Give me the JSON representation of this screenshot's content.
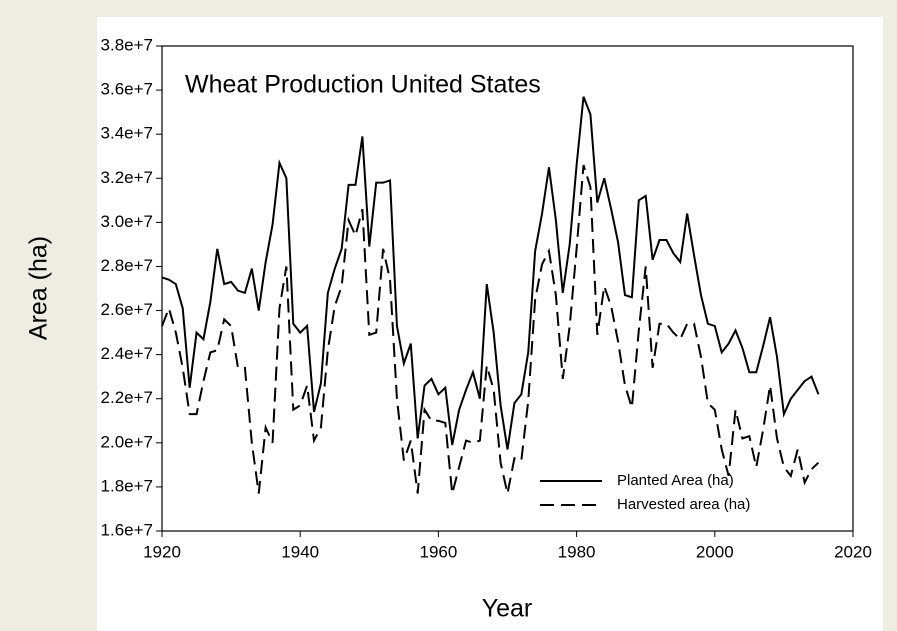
{
  "chart_data": {
    "type": "line",
    "title": "Wheat Production United States",
    "x_label": "Year",
    "y_label": "Area (ha)",
    "x": [
      1920,
      1921,
      1922,
      1923,
      1924,
      1925,
      1926,
      1927,
      1928,
      1929,
      1930,
      1931,
      1932,
      1933,
      1934,
      1935,
      1936,
      1937,
      1938,
      1939,
      1940,
      1941,
      1942,
      1943,
      1944,
      1945,
      1946,
      1947,
      1948,
      1949,
      1950,
      1951,
      1952,
      1953,
      1954,
      1955,
      1956,
      1957,
      1958,
      1959,
      1960,
      1961,
      1962,
      1963,
      1964,
      1965,
      1966,
      1967,
      1968,
      1969,
      1970,
      1971,
      1972,
      1973,
      1974,
      1975,
      1976,
      1977,
      1978,
      1979,
      1980,
      1981,
      1982,
      1983,
      1984,
      1985,
      1986,
      1987,
      1988,
      1989,
      1990,
      1991,
      1992,
      1993,
      1994,
      1995,
      1996,
      1997,
      1998,
      1999,
      2000,
      2001,
      2002,
      2003,
      2004,
      2005,
      2006,
      2007,
      2008,
      2009,
      2010,
      2011,
      2012,
      2013,
      2014,
      2015
    ],
    "series": [
      {
        "name": "Planted Area (ha)",
        "color": "#000000",
        "dash": "solid",
        "values": [
          27500000,
          27400000,
          27200000,
          26100000,
          22500000,
          25000000,
          24700000,
          26400000,
          28800000,
          27200000,
          27300000,
          26900000,
          26800000,
          27900000,
          26000000,
          28200000,
          29900000,
          32700000,
          32000000,
          25400000,
          25000000,
          25300000,
          21400000,
          22700000,
          26800000,
          27900000,
          28800000,
          31700000,
          31700000,
          33900000,
          28900000,
          31800000,
          31800000,
          31900000,
          25300000,
          23600000,
          24500000,
          20200000,
          22600000,
          22900000,
          22200000,
          22500000,
          19900000,
          21500000,
          22400000,
          23200000,
          22000000,
          27200000,
          25000000,
          21700000,
          19700000,
          21800000,
          22200000,
          24100000,
          28700000,
          30400000,
          32500000,
          30100000,
          26800000,
          29000000,
          32600000,
          35700000,
          34900000,
          30900000,
          32000000,
          30600000,
          29100000,
          26700000,
          26600000,
          31000000,
          31200000,
          28300000,
          29200000,
          29200000,
          28600000,
          28200000,
          30400000,
          28500000,
          26700000,
          25400000,
          25300000,
          24100000,
          24500000,
          25100000,
          24300000,
          23200000,
          23200000,
          24400000,
          25700000,
          23900000,
          21300000,
          22000000,
          22400000,
          22800000,
          23000000,
          22200000
        ]
      },
      {
        "name": "Harvested area (ha)",
        "color": "#000000",
        "dash": "dashed",
        "values": [
          25300000,
          26100000,
          25000000,
          23400000,
          21300000,
          21300000,
          22800000,
          24100000,
          24200000,
          25600000,
          25300000,
          23400000,
          23400000,
          20000000,
          17700000,
          20700000,
          20000000,
          26100000,
          28000000,
          21500000,
          21700000,
          22600000,
          20100000,
          20700000,
          24200000,
          26200000,
          27100000,
          30100000,
          29400000,
          30600000,
          24900000,
          25000000,
          28800000,
          27400000,
          22000000,
          19200000,
          20100000,
          17700000,
          21500000,
          21000000,
          21000000,
          20900000,
          17700000,
          18900000,
          20100000,
          20000000,
          20100000,
          23500000,
          22400000,
          19100000,
          17700000,
          19300000,
          19200000,
          21900000,
          26500000,
          28100000,
          28700000,
          26700000,
          22900000,
          25300000,
          28800000,
          32600000,
          31600000,
          24900000,
          27100000,
          26200000,
          24600000,
          22600000,
          21600000,
          25100000,
          28000000,
          23400000,
          25400000,
          25400000,
          25000000,
          24700000,
          25400000,
          25400000,
          23900000,
          21800000,
          21500000,
          19700000,
          18500000,
          21500000,
          20200000,
          20300000,
          18900000,
          20600000,
          22600000,
          20200000,
          18900000,
          18500000,
          19700000,
          18200000,
          18800000,
          19100000
        ]
      }
    ],
    "xlim": [
      1920,
      2020
    ],
    "xticks": [
      1920,
      1940,
      1960,
      1980,
      2000,
      2020
    ],
    "ylim": [
      16000000,
      38000000
    ],
    "yticks": [
      {
        "value": 16000000,
        "label": "1.6e+7"
      },
      {
        "value": 18000000,
        "label": "1.8e+7"
      },
      {
        "value": 20000000,
        "label": "2.0e+7"
      },
      {
        "value": 22000000,
        "label": "2.2e+7"
      },
      {
        "value": 24000000,
        "label": "2.4e+7"
      },
      {
        "value": 26000000,
        "label": "2.6e+7"
      },
      {
        "value": 28000000,
        "label": "2.8e+7"
      },
      {
        "value": 30000000,
        "label": "3.0e+7"
      },
      {
        "value": 32000000,
        "label": "3.2e+7"
      },
      {
        "value": 34000000,
        "label": "3.4e+7"
      },
      {
        "value": 36000000,
        "label": "3.6e+7"
      },
      {
        "value": 38000000,
        "label": "3.8e+7"
      }
    ],
    "grid": false,
    "legend": "lower right"
  }
}
